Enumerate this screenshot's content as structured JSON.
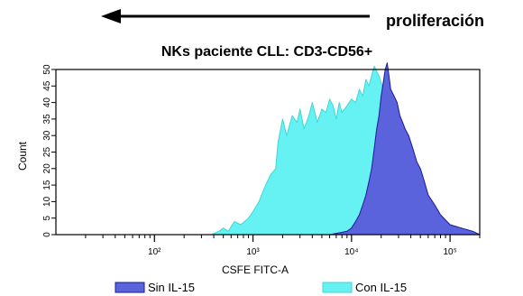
{
  "annotation": {
    "label": "proliferación",
    "arrow_direction": "left"
  },
  "chart_data": {
    "type": "area",
    "title": "NKs paciente CLL: CD3-CD56+",
    "xlabel": "CSFE FITC-A",
    "ylabel": "Count",
    "x_scale": "log",
    "xlim": [
      10,
      200000
    ],
    "ylim": [
      0,
      50
    ],
    "grid": false,
    "legend_position": "bottom",
    "y_ticks": [
      "0",
      "5",
      "10",
      "15",
      "20",
      "25",
      "30",
      "35",
      "40",
      "45",
      "50"
    ],
    "x_ticks": [
      {
        "value": 100,
        "label": "10²"
      },
      {
        "value": 1000,
        "label": "10³"
      },
      {
        "value": 10000,
        "label": "10⁴"
      },
      {
        "value": 100000,
        "label": "10⁵"
      }
    ],
    "series": [
      {
        "name": "Con IL-15",
        "color": "#66f2f2",
        "edge_color": "#3fd6d6",
        "x": [
          150,
          380,
          450,
          500,
          560,
          650,
          750,
          900,
          1000,
          1150,
          1300,
          1500,
          1700,
          1800,
          2000,
          2200,
          2500,
          2800,
          3000,
          3300,
          3700,
          4000,
          4500,
          5000,
          5500,
          6000,
          6500,
          7000,
          7500,
          8000,
          9000,
          10000,
          11000,
          12000,
          13000,
          14000,
          15000,
          17000,
          19000,
          21000,
          23000,
          25000,
          28000,
          32000,
          36000,
          40000,
          45000,
          50000,
          60000,
          80000,
          110000,
          200000
        ],
        "values": [
          0,
          0,
          1,
          2,
          1,
          4,
          3,
          5,
          7,
          10,
          14,
          18,
          20,
          28,
          35,
          30,
          36,
          34,
          38,
          32,
          36,
          40,
          34,
          38,
          37,
          41,
          39,
          35,
          40,
          37,
          39,
          41,
          40,
          44,
          42,
          47,
          45,
          51,
          48,
          44,
          35,
          25,
          22,
          20,
          18,
          14,
          10,
          8,
          5,
          3,
          1,
          0
        ]
      },
      {
        "name": "Sin IL-15",
        "color": "#5a62dc",
        "edge_color": "#1a1a9a",
        "x": [
          150,
          380,
          2000,
          3000,
          6000,
          9000,
          10000,
          11000,
          12000,
          13000,
          14000,
          15000,
          16000,
          17000,
          18000,
          19000,
          20000,
          21000,
          22000,
          23000,
          24000,
          25000,
          27000,
          29000,
          31000,
          33000,
          35000,
          38000,
          42000,
          46000,
          50000,
          55000,
          60000,
          70000,
          80000,
          100000,
          130000,
          170000,
          200000
        ],
        "values": [
          0,
          0,
          0,
          0,
          0,
          1,
          2,
          4,
          6,
          9,
          12,
          16,
          20,
          26,
          32,
          36,
          42,
          46,
          50,
          52,
          48,
          44,
          42,
          40,
          36,
          34,
          32,
          30,
          26,
          22,
          20,
          16,
          12,
          9,
          6,
          3,
          2,
          1,
          0
        ]
      }
    ]
  }
}
